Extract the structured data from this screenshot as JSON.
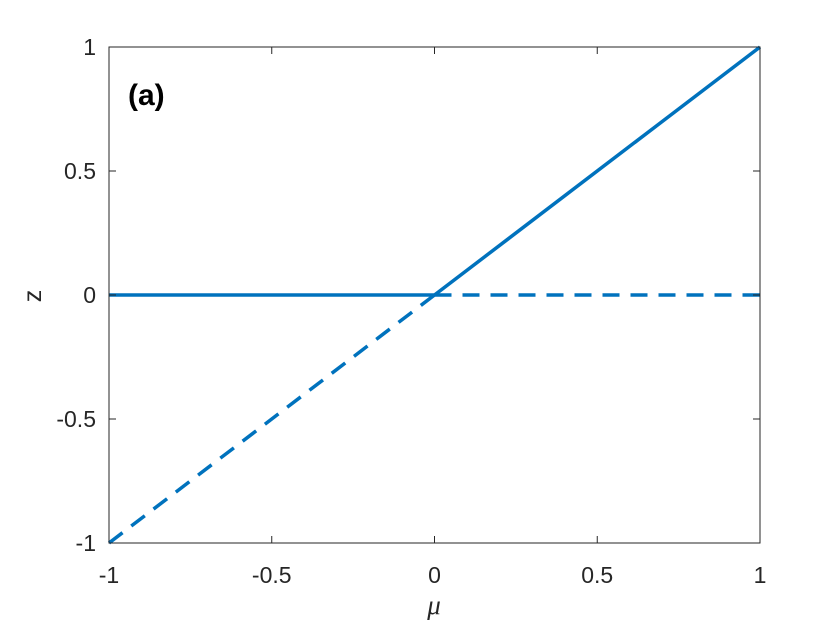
{
  "chart_data": {
    "type": "line",
    "title": "",
    "panel_label": "(a)",
    "xlabel": "μ",
    "ylabel": "z",
    "xlim": [
      -1,
      1
    ],
    "ylim": [
      -1,
      1
    ],
    "xticks": [
      -1,
      -0.5,
      0,
      0.5,
      1
    ],
    "xtick_labels": [
      "-1",
      "-0.5",
      "0",
      "0.5",
      "1"
    ],
    "yticks": [
      -1,
      -0.5,
      0,
      0.5,
      1
    ],
    "ytick_labels": [
      "-1",
      "-0.5",
      "0",
      "0.5",
      "1"
    ],
    "grid": false,
    "legend": false,
    "series": [
      {
        "style": "solid",
        "color": "#0072BD",
        "x": [
          -1,
          0
        ],
        "y": [
          0,
          0
        ]
      },
      {
        "style": "solid",
        "color": "#0072BD",
        "x": [
          0,
          1
        ],
        "y": [
          0,
          1
        ]
      },
      {
        "style": "dashed",
        "color": "#0072BD",
        "x": [
          -1,
          0
        ],
        "y": [
          -1,
          0
        ]
      },
      {
        "style": "dashed",
        "color": "#0072BD",
        "x": [
          0,
          1
        ],
        "y": [
          0,
          0
        ]
      }
    ]
  }
}
